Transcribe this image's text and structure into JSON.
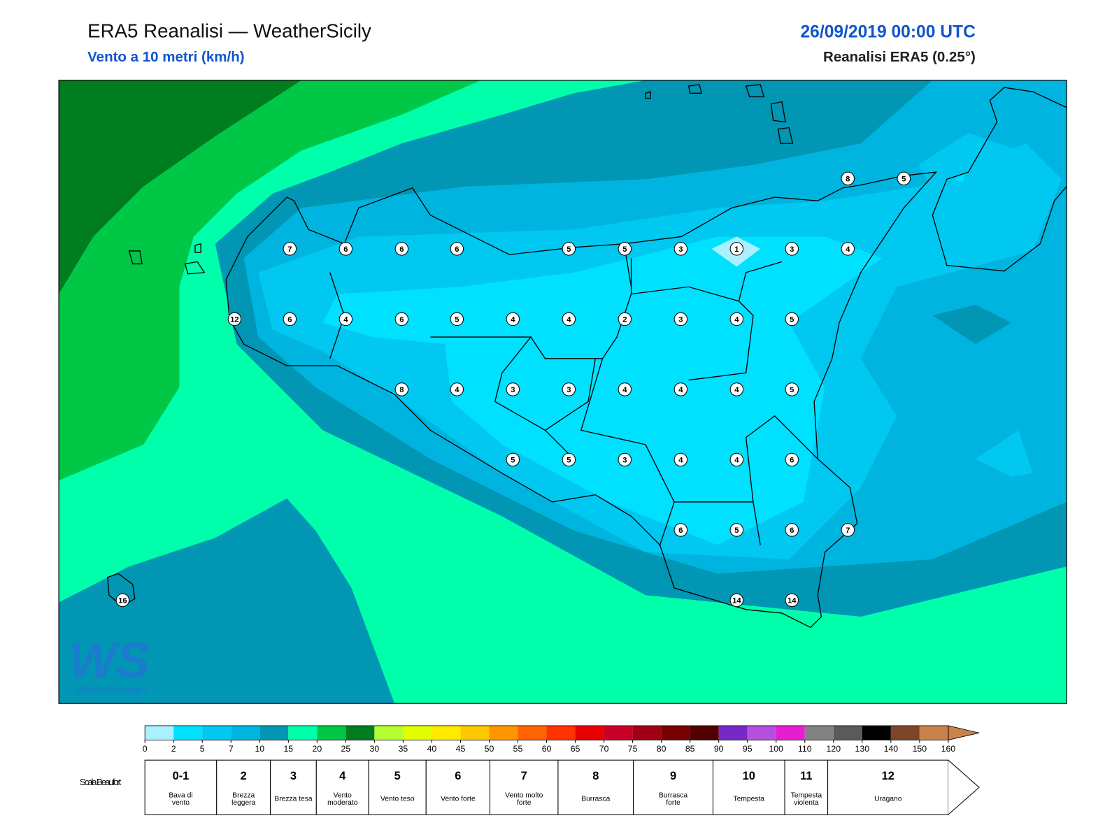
{
  "header": {
    "title": "ERA5 Reanalisi — WeatherSicily",
    "subtitle": "Vento a 10 metri (km/h)",
    "datetime": "26/09/2019 00:00 UTC",
    "source": "Reanalisi ERA5 (0.25°)"
  },
  "map": {
    "stations": [
      7,
      6,
      6,
      6,
      5,
      5,
      3,
      1,
      3,
      4,
      12,
      6,
      4,
      6,
      5,
      4,
      4,
      2,
      3,
      4,
      5,
      8,
      4,
      3,
      3,
      4,
      4,
      4,
      5,
      5,
      5,
      3,
      4,
      4,
      6,
      6,
      5,
      6,
      7,
      14,
      14,
      16,
      8,
      5
    ]
  },
  "logo": {
    "text": "WS",
    "name": "WEATHER SICILY"
  },
  "colorbar": {
    "ticks": [
      0,
      2,
      5,
      7,
      10,
      15,
      20,
      25,
      30,
      35,
      40,
      45,
      50,
      55,
      60,
      65,
      70,
      75,
      80,
      85,
      90,
      95,
      100,
      110,
      120,
      130,
      140,
      150,
      160
    ],
    "colors": [
      "#aaf0ff",
      "#00e0ff",
      "#00c8f0",
      "#00b4e0",
      "#0096b4",
      "#00ffaa",
      "#00c846",
      "#007d1e",
      "#b4ff32",
      "#e1ff00",
      "#ffeb00",
      "#ffc800",
      "#ff9600",
      "#ff6400",
      "#ff3200",
      "#e60000",
      "#c80028",
      "#a00014",
      "#780000",
      "#500000",
      "#7828c8",
      "#b450dc",
      "#e61ed2",
      "#828282",
      "#5a5a5a",
      "#000000",
      "#7d4628",
      "#c8824b"
    ]
  },
  "beaufort": {
    "label": "Scala Beaufort",
    "classes": [
      {
        "force": "0-1",
        "name": "Bava di vento"
      },
      {
        "force": 2,
        "name": "Brezza leggera"
      },
      {
        "force": 3,
        "name": "Brezza tesa"
      },
      {
        "force": 4,
        "name": "Vento moderato"
      },
      {
        "force": 5,
        "name": "Vento teso"
      },
      {
        "force": 6,
        "name": "Vento forte"
      },
      {
        "force": 7,
        "name": "Vento molto forte"
      },
      {
        "force": 8,
        "name": "Burrasca"
      },
      {
        "force": 9,
        "name": "Burrasca forte"
      },
      {
        "force": 10,
        "name": "Tempesta"
      },
      {
        "force": 11,
        "name": "Tempesta violenta"
      },
      {
        "force": 12,
        "name": "Uragano"
      }
    ]
  }
}
